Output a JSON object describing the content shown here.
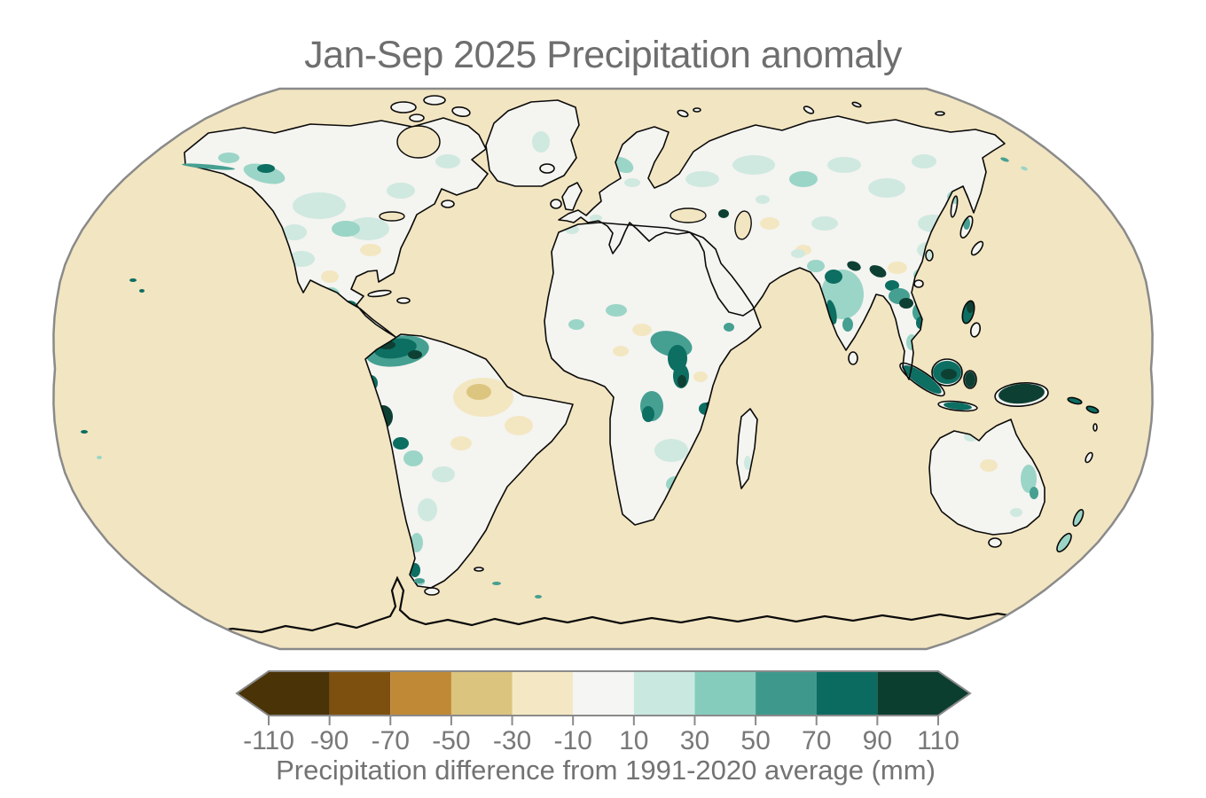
{
  "title": "Jan-Sep 2025 Precipitation anomaly",
  "colorbar": {
    "tick_labels": [
      "-110",
      "-90",
      "-70",
      "-50",
      "-30",
      "-10",
      "10",
      "30",
      "50",
      "70",
      "90",
      "110"
    ],
    "segment_colors": [
      "#4a3306",
      "#7d500f",
      "#bf8936",
      "#dbc47e",
      "#f4e8c4",
      "#f5f5f3",
      "#c9e9e0",
      "#85ccbd",
      "#3e998c",
      "#0b6b60",
      "#0c3e30"
    ],
    "extend_left": true,
    "extend_right": true,
    "caption": "Precipitation difference from 1991-2020 average (mm)"
  },
  "palette": {
    "ocean": "#f2e5c1",
    "land": "#f4f4f1",
    "coastline": "#0a0a0a",
    "map_border": "#8a8a8a",
    "text": "#6e6e6e",
    "tick_text": "#787878",
    "p1": "#cfe9e0",
    "p2": "#9bd5c7",
    "p3": "#46a092",
    "p4": "#0d6e62",
    "p5": "#0d4033",
    "n1": "#f3e7c2",
    "n2": "#dcc57f"
  },
  "chart_data": {
    "type": "heatmap",
    "title": "Jan-Sep 2025 Precipitation anomaly",
    "period": "Jan-Sep 2025",
    "baseline_period": "1991-2020",
    "units": "mm",
    "colorbar_label": "Precipitation difference from 1991-2020 average (mm)",
    "scale_ticks": [
      -110,
      -90,
      -70,
      -50,
      -30,
      -10,
      10,
      30,
      50,
      70,
      90,
      110
    ],
    "scale_colors": [
      "#4a3306",
      "#7d500f",
      "#bf8936",
      "#dbc47e",
      "#f4e8c4",
      "#f5f5f3",
      "#c9e9e0",
      "#85ccbd",
      "#3e998c",
      "#0b6b60",
      "#0c3e30"
    ],
    "extend": "both",
    "projection": "Robinson-style world map",
    "legend_position": "bottom",
    "notable_wet_regions": [
      "northern South America (Colombia/Venezuela)",
      "Peru/Andes",
      "southern Chile",
      "central Africa (Congo basin)",
      "southern Africa patches",
      "India and Himalayan foothills",
      "Southeast Asia",
      "Indonesia and New Guinea (strongest positive)",
      "Philippines",
      "eastern Australia coast",
      "New Zealand",
      "Alaska south coast",
      "Scandinavia"
    ],
    "notable_dry_regions": [
      "interior Brazil",
      "parts of Sahel and Sudan",
      "central Asia patches",
      "southwestern United States patches",
      "interior Australia patches"
    ],
    "near_average_regions": [
      "most of North America",
      "Europe",
      "Sahara",
      "Arabia",
      "Siberia (slightly wet patches)",
      "most of Australia"
    ]
  }
}
